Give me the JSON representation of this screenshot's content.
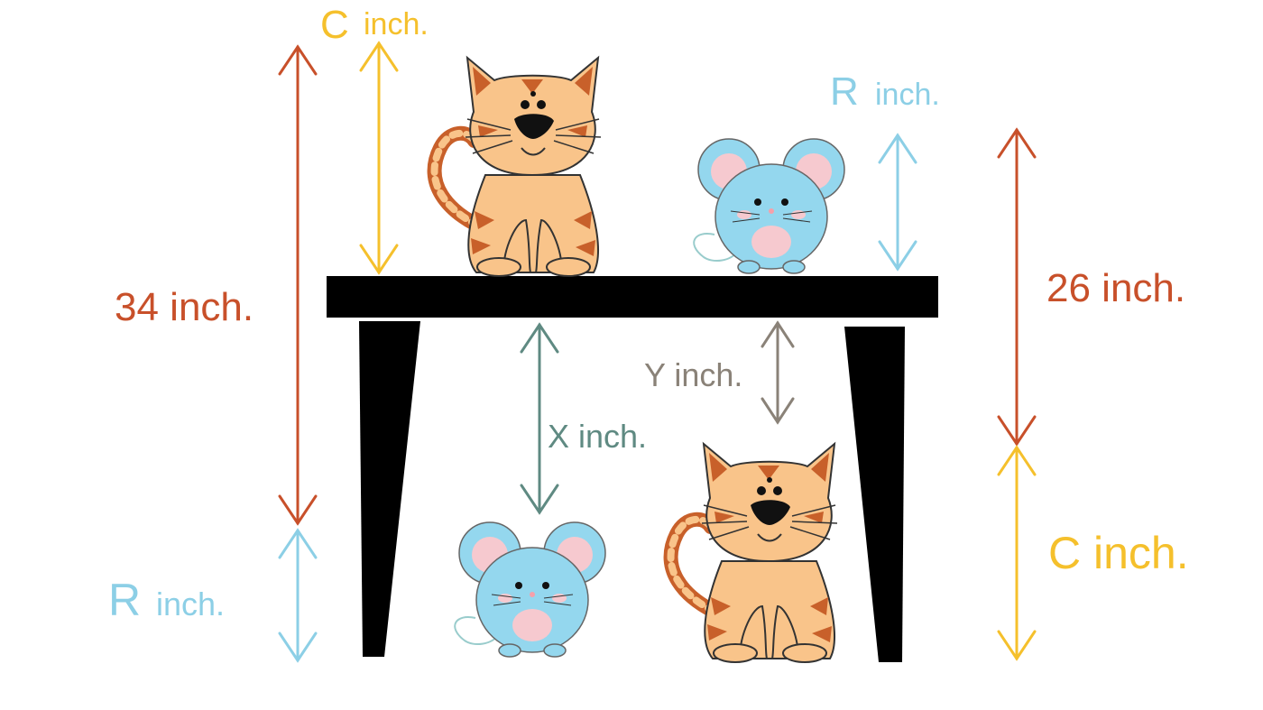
{
  "labels": {
    "c_top_letter": "C",
    "c_top_unit": "inch.",
    "r_top_letter": "R",
    "r_top_unit": "inch.",
    "height_left": "34 inch.",
    "height_right": "26 inch.",
    "x_gap": "X inch.",
    "y_gap": "Y inch.",
    "r_bottom_letter": "R",
    "r_bottom_unit": "inch.",
    "c_bottom": "C inch."
  },
  "colors": {
    "orange_red": "#c8502a",
    "yellow": "#f5c02c",
    "light_blue": "#8ccfe6",
    "teal_gray": "#5f8a82",
    "gray": "#8a8278",
    "table": "#000000",
    "cat_body": "#f9c48a",
    "cat_stripe": "#c8602a",
    "mouse_body": "#94d7ee",
    "mouse_pink": "#f6c9cf"
  },
  "icons": [
    "cat-illustration",
    "mouse-illustration",
    "table-illustration",
    "double-arrow-icon"
  ]
}
